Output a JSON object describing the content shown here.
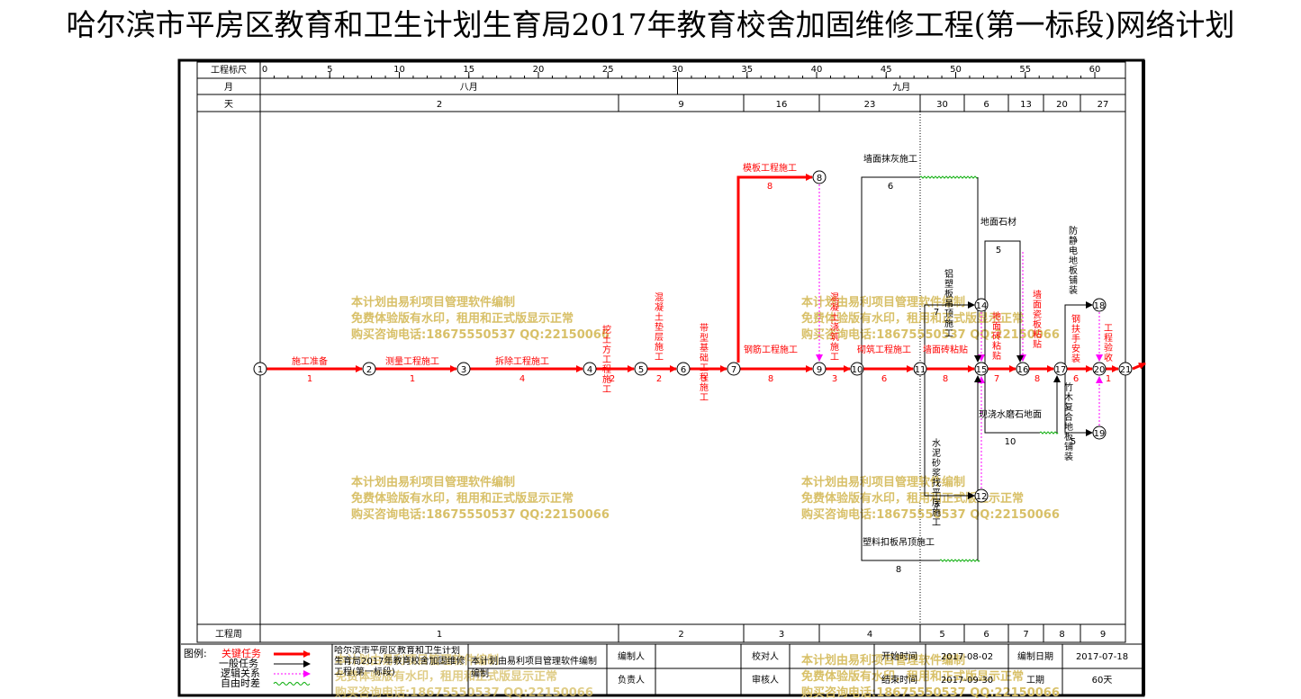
{
  "title": "哈尔滨市平房区教育和卫生计划生育局2017年教育校舍加固维修工程(第一标段)网络计划",
  "header": {
    "scale_label": "工程标尺",
    "month_label": "月",
    "day_label": "天",
    "week_label": "工程周",
    "scale_ticks": [
      "0",
      "5",
      "10",
      "15",
      "20",
      "25",
      "30",
      "35",
      "40",
      "45",
      "50",
      "55",
      "60"
    ],
    "months": [
      "八月",
      "九月"
    ],
    "days": [
      "2",
      "9",
      "16",
      "23",
      "30",
      "6",
      "13",
      "20",
      "27"
    ],
    "weeks": [
      "1",
      "2",
      "3",
      "4",
      "5",
      "6",
      "7",
      "8",
      "9"
    ]
  },
  "legend": {
    "title": "图例:",
    "critical": "关键任务",
    "normal": "一般任务",
    "logic": "逻辑关系",
    "float": "自由时差",
    "critical_color": "#ff0000",
    "normal_color": "#000000",
    "logic_color": "#ff00ff",
    "float_color": "#00aa00"
  },
  "footer": {
    "project_name": "哈尔滨市平房区教育和卫生计划生育局2017年教育校舍加固维修工程(第一标段)",
    "software_note": "本计划由易利项目管理软件编制",
    "compile_label": "编制",
    "editor_label": "编制人",
    "editor_value": "",
    "proof_label": "校对人",
    "proof_value": "",
    "start_label": "开始时间",
    "start_value": "2017-08-02",
    "date_label": "编制日期",
    "date_value": "2017-07-18",
    "owner_label": "负责人",
    "owner_value": "",
    "review_label": "审核人",
    "review_value": "",
    "end_label": "结束时间",
    "end_value": "2017-09-30",
    "duration_label": "工期",
    "duration_value": "60天"
  },
  "watermark": {
    "line1": "本计划由易利项目管理软件编制",
    "line2": "免费体验版有水印，租用和正式版显示正常",
    "line3": "购买咨询电话:18675550537 QQ:22150066",
    "color": "#d8c068"
  },
  "tasks": {
    "t1": {
      "name": "施工准备",
      "duration": "1"
    },
    "t2": {
      "name": "测量工程施工",
      "duration": "1"
    },
    "t3": {
      "name": "拆除工程施工",
      "duration": "4"
    },
    "t4": {
      "name": "挖土方工程施工",
      "duration": "2"
    },
    "t5": {
      "name": "混凝土垫层施工",
      "duration": "2"
    },
    "t6": {
      "name": "带型基础工程施工",
      "duration": "3"
    },
    "t7": {
      "name": "钢筋工程施工",
      "duration": "8"
    },
    "t8": {
      "name": "模板工程施工",
      "duration": "8"
    },
    "t9": {
      "name": "混凝土浇筑施工",
      "duration": "3"
    },
    "t10": {
      "name": "砌筑工程施工",
      "duration": "6"
    },
    "t11": {
      "name": "墙面砖粘贴",
      "duration": "8"
    },
    "t12": {
      "name": "墙面抹灰施工",
      "duration": "6"
    },
    "t13": {
      "name": "塑料扣板吊顶施工",
      "duration": "8"
    },
    "t14": {
      "name": "铝塑板吊顶施工",
      "duration": "7"
    },
    "t15": {
      "name": "水泥砂浆找平层施工",
      "duration": "3"
    },
    "t16": {
      "name": "地面砖粘贴",
      "duration": "7"
    },
    "t17": {
      "name": "地面石材",
      "duration": "5"
    },
    "t18": {
      "name": "现浇水磨石地面",
      "duration": "10"
    },
    "t19": {
      "name": "墙面瓷板粘贴",
      "duration": "8"
    },
    "t20": {
      "name": "防静电地板铺装",
      "duration": ""
    },
    "t21": {
      "name": "钢扶手安装",
      "duration": "6"
    },
    "t22": {
      "name": "竹木复合地板铺装",
      "duration": "5"
    },
    "t23": {
      "name": "工程验收",
      "duration": "1"
    }
  },
  "nodes": [
    "1",
    "2",
    "3",
    "4",
    "5",
    "6",
    "7",
    "8",
    "9",
    "10",
    "11",
    "12",
    "13",
    "14",
    "15",
    "16",
    "17",
    "18",
    "19",
    "20",
    "21"
  ]
}
